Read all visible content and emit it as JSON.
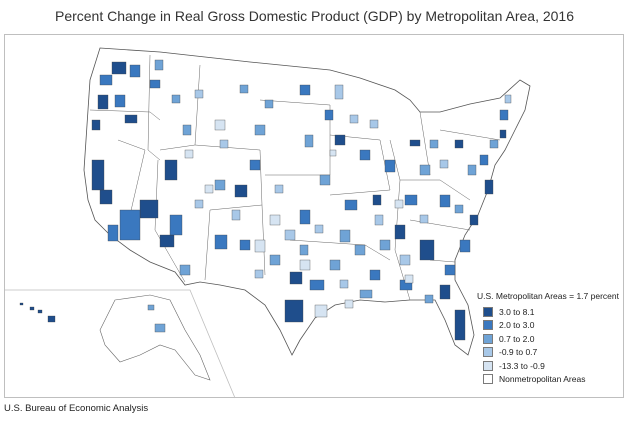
{
  "title": "Percent Change in Real Gross Domestic Product (GDP) by Metropolitan Area, 2016",
  "source": "U.S. Bureau of Economic Analysis",
  "legend": {
    "title": "U.S. Metropolitan Areas = 1.7 percent",
    "items": [
      {
        "label": "3.0 to 8.1",
        "color": "#1f4e8c"
      },
      {
        "label": "2.0 to 3.0",
        "color": "#3a78bf"
      },
      {
        "label": "0.7 to 2.0",
        "color": "#6fa3d6"
      },
      {
        "label": "-0.9 to 0.7",
        "color": "#a8c8e8"
      },
      {
        "label": "-13.3 to -0.9",
        "color": "#d6e4f2"
      },
      {
        "label": "Nonmetropolitan Areas",
        "color": "#ffffff"
      }
    ]
  }
}
